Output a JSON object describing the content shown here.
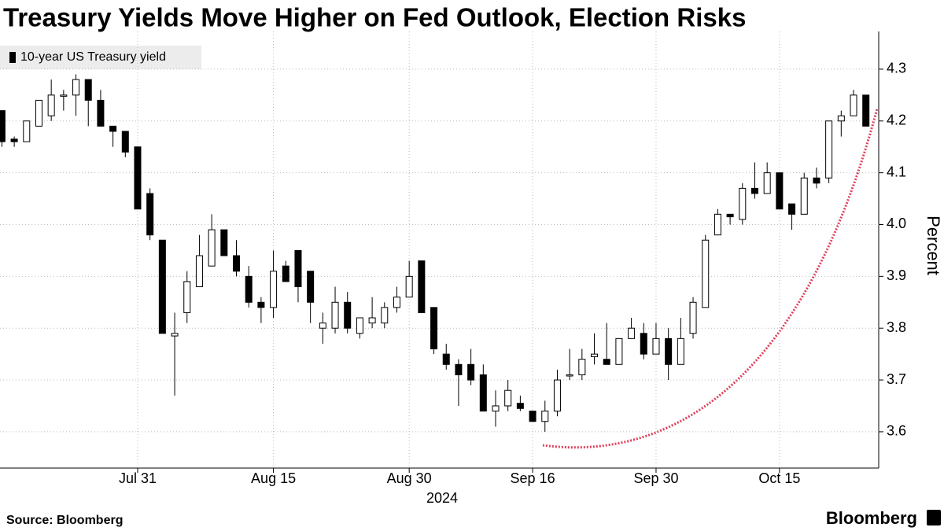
{
  "chart_data": {
    "type": "candlestick",
    "title": "Treasury Yields Move Higher on Fed Outlook, Election Risks",
    "y_label": "Percent",
    "x_sublabel": "2024",
    "source": "Source: Bloomberg",
    "logo": "Bloomberg",
    "categories": [
      null,
      null,
      null,
      null,
      null,
      null,
      null,
      null,
      null,
      null,
      null,
      "Jul 31",
      null,
      null,
      null,
      null,
      null,
      null,
      null,
      null,
      null,
      null,
      "Aug 15",
      null,
      null,
      null,
      null,
      null,
      null,
      null,
      null,
      null,
      null,
      "Aug 30",
      null,
      null,
      null,
      null,
      null,
      null,
      null,
      null,
      null,
      "Sep 16",
      null,
      null,
      null,
      null,
      null,
      null,
      null,
      null,
      null,
      "Sep 30",
      null,
      null,
      null,
      null,
      null,
      null,
      null,
      null,
      null,
      "Oct 15",
      null,
      null,
      null,
      null,
      null,
      null,
      null
    ],
    "series": [
      {
        "name": "10-year US Treasury yield",
        "color": "#000000",
        "up_color": "#ffffff",
        "open": [
          4.22,
          4.165,
          4.16,
          4.19,
          4.21,
          4.25,
          4.25,
          4.28,
          4.24,
          4.19,
          4.18,
          4.15,
          4.06,
          3.97,
          3.785,
          3.83,
          3.88,
          3.92,
          3.99,
          3.94,
          3.9,
          3.85,
          3.84,
          3.92,
          3.95,
          3.91,
          3.8,
          3.8,
          3.85,
          3.79,
          3.81,
          3.81,
          3.84,
          3.86,
          3.93,
          3.84,
          3.75,
          3.73,
          3.73,
          3.71,
          3.64,
          3.65,
          3.655,
          3.64,
          3.62,
          3.64,
          3.71,
          3.71,
          3.745,
          3.74,
          3.73,
          3.78,
          3.79,
          3.75,
          3.78,
          3.73,
          3.79,
          3.84,
          3.98,
          4.02,
          4.01,
          4.07,
          4.06,
          4.1,
          4.04,
          4.02,
          4.09,
          4.09,
          4.2,
          4.21,
          4.25
        ],
        "high": [
          4.22,
          4.17,
          4.2,
          4.24,
          4.28,
          4.26,
          4.29,
          4.28,
          4.26,
          4.19,
          4.18,
          4.15,
          4.07,
          3.97,
          3.83,
          3.91,
          3.98,
          4.02,
          3.99,
          3.97,
          3.92,
          3.86,
          3.95,
          3.93,
          3.95,
          3.91,
          3.83,
          3.88,
          3.87,
          3.82,
          3.86,
          3.85,
          3.88,
          3.93,
          3.93,
          3.84,
          3.77,
          3.74,
          3.76,
          3.73,
          3.68,
          3.7,
          3.67,
          3.64,
          3.66,
          3.72,
          3.76,
          3.76,
          3.79,
          3.81,
          3.78,
          3.82,
          3.81,
          3.81,
          3.8,
          3.82,
          3.86,
          3.98,
          4.03,
          4.02,
          4.08,
          4.12,
          4.12,
          4.1,
          4.04,
          4.1,
          4.11,
          4.2,
          4.22,
          4.26,
          4.25
        ],
        "low": [
          4.15,
          4.15,
          4.16,
          4.19,
          4.2,
          4.22,
          4.21,
          4.19,
          4.19,
          4.15,
          4.13,
          4.03,
          3.97,
          3.79,
          3.67,
          3.81,
          3.88,
          3.92,
          3.94,
          3.9,
          3.84,
          3.81,
          3.82,
          3.89,
          3.85,
          3.81,
          3.77,
          3.79,
          3.79,
          3.78,
          3.8,
          3.8,
          3.83,
          3.86,
          3.83,
          3.75,
          3.72,
          3.65,
          3.69,
          3.64,
          3.61,
          3.64,
          3.64,
          3.62,
          3.6,
          3.63,
          3.7,
          3.7,
          3.73,
          3.73,
          3.73,
          3.78,
          3.74,
          3.75,
          3.7,
          3.73,
          3.78,
          3.84,
          3.98,
          4.0,
          4.0,
          4.05,
          4.06,
          4.03,
          3.99,
          4.02,
          4.07,
          4.08,
          4.17,
          4.21,
          4.19
        ],
        "close": [
          4.16,
          4.16,
          4.2,
          4.24,
          4.25,
          4.25,
          4.28,
          4.24,
          4.19,
          4.18,
          4.14,
          4.03,
          3.98,
          3.79,
          3.79,
          3.89,
          3.94,
          3.99,
          3.94,
          3.91,
          3.85,
          3.84,
          3.91,
          3.89,
          3.88,
          3.85,
          3.81,
          3.85,
          3.8,
          3.82,
          3.82,
          3.84,
          3.86,
          3.9,
          3.83,
          3.76,
          3.73,
          3.71,
          3.7,
          3.64,
          3.65,
          3.68,
          3.645,
          3.62,
          3.64,
          3.7,
          3.71,
          3.74,
          3.75,
          3.73,
          3.78,
          3.8,
          3.75,
          3.78,
          3.73,
          3.78,
          3.85,
          3.97,
          4.02,
          4.015,
          4.07,
          4.06,
          4.1,
          4.03,
          4.02,
          4.09,
          4.08,
          4.2,
          4.21,
          4.25,
          4.19
        ]
      }
    ],
    "ylim": [
      3.53,
      4.35
    ],
    "yticks": [
      3.6,
      3.7,
      3.8,
      3.9,
      {
        "value": 4,
        "label": "4.0"
      },
      4.1,
      4.2,
      4.3
    ],
    "grid": true
  }
}
